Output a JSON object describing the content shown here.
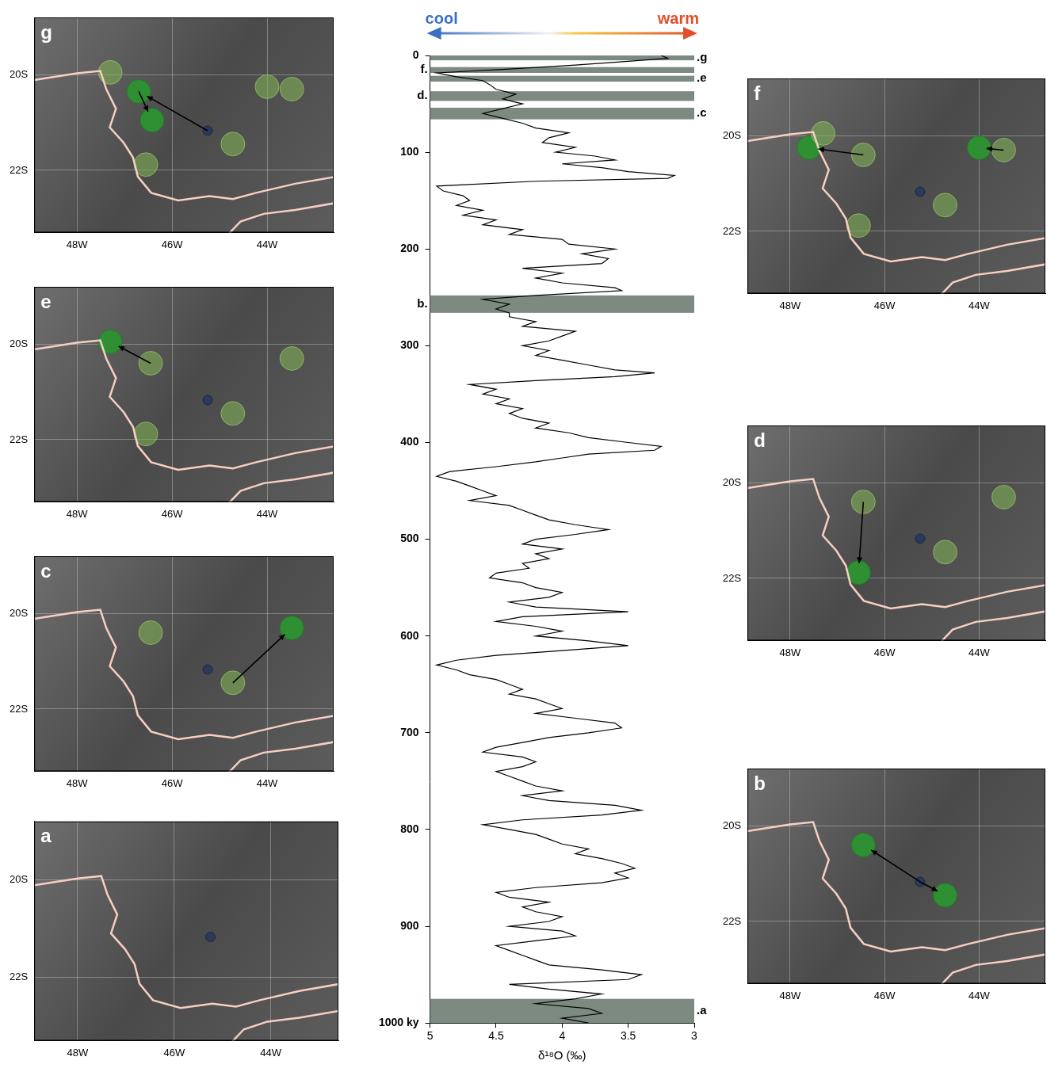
{
  "chart_data": [
    {
      "type": "line",
      "x_label": "δ¹⁸O (‰)",
      "annotations": [
        {
          "text": "cool",
          "color": "#3a6fc4"
        },
        {
          "text": "warm",
          "color": "#e0502a"
        }
      ],
      "color": "#000000",
      "grid": false,
      "xlim": [
        5,
        3
      ],
      "xticks": [
        5,
        4.5,
        4,
        3.5,
        3
      ],
      "ylim": [
        1000,
        0
      ],
      "yticks": [
        0,
        100,
        200,
        300,
        400,
        500,
        600,
        700,
        800,
        900,
        {
          "value": 1000,
          "label": "1000 ky"
        }
      ],
      "bands": [
        {
          "label": ".a",
          "from": 975,
          "to": 1000
        },
        {
          "label": "b.",
          "from": 248,
          "to": 266
        },
        {
          "label": ".c",
          "from": 54,
          "to": 66
        },
        {
          "label": "d.",
          "from": 37,
          "to": 47
        },
        {
          "label": ".e",
          "from": 21,
          "to": 27
        },
        {
          "label": "f.",
          "from": 12,
          "to": 18
        },
        {
          "label": ".g",
          "from": 0,
          "to": 5
        }
      ],
      "y": [
        0,
        3,
        6,
        10,
        14,
        18,
        22,
        26,
        30,
        35,
        40,
        45,
        50,
        55,
        60,
        65,
        70,
        75,
        80,
        85,
        90,
        95,
        100,
        104,
        108,
        112,
        116,
        120,
        124,
        127,
        130,
        135,
        140,
        145,
        150,
        155,
        160,
        165,
        170,
        175,
        180,
        185,
        190,
        195,
        200,
        205,
        210,
        215,
        220,
        225,
        230,
        235,
        240,
        243,
        248,
        252,
        257,
        262,
        266,
        270,
        275,
        280,
        285,
        290,
        295,
        300,
        305,
        310,
        315,
        320,
        325,
        328,
        332,
        336,
        340,
        345,
        350,
        355,
        360,
        365,
        370,
        375,
        380,
        385,
        390,
        395,
        400,
        404,
        408,
        412,
        416,
        420,
        425,
        430,
        435,
        440,
        445,
        450,
        455,
        460,
        465,
        470,
        475,
        480,
        485,
        490,
        495,
        500,
        505,
        510,
        515,
        520,
        525,
        530,
        535,
        540,
        545,
        550,
        555,
        560,
        565,
        570,
        575,
        580,
        585,
        590,
        595,
        600,
        605,
        610,
        615,
        620,
        625,
        630,
        635,
        640,
        645,
        650,
        655,
        660,
        665,
        670,
        675,
        680,
        685,
        690,
        695,
        700,
        705,
        710,
        715,
        720,
        725,
        730,
        735,
        740,
        745,
        750,
        755,
        760,
        765,
        770,
        775,
        780,
        785,
        790,
        795,
        800,
        805,
        810,
        815,
        820,
        825,
        830,
        835,
        840,
        845,
        850,
        855,
        860,
        865,
        870,
        875,
        880,
        885,
        890,
        895,
        900,
        905,
        910,
        915,
        920,
        925,
        930,
        935,
        940,
        945,
        950,
        955,
        960,
        965,
        970,
        975,
        980,
        985,
        990,
        995,
        1000
      ],
      "x": [
        3.25,
        3.2,
        3.5,
        3.9,
        4.4,
        4.95,
        4.8,
        4.6,
        4.55,
        4.5,
        4.35,
        4.45,
        4.3,
        4.45,
        4.6,
        4.45,
        4.3,
        4.2,
        3.95,
        4.1,
        4.15,
        3.9,
        4.05,
        3.75,
        3.6,
        4.0,
        3.7,
        3.5,
        3.15,
        3.2,
        4.2,
        4.95,
        4.9,
        4.75,
        4.7,
        4.8,
        4.6,
        4.75,
        4.5,
        4.6,
        4.3,
        4.4,
        4.0,
        3.95,
        3.6,
        3.85,
        3.65,
        3.7,
        4.3,
        4.0,
        4.2,
        4.0,
        3.6,
        3.55,
        4.2,
        4.6,
        4.4,
        4.5,
        4.4,
        4.4,
        4.2,
        4.3,
        3.9,
        4.0,
        4.1,
        4.3,
        4.1,
        4.2,
        4.0,
        3.8,
        3.6,
        3.3,
        3.6,
        4.2,
        4.7,
        4.5,
        4.6,
        4.4,
        4.5,
        4.3,
        4.4,
        4.3,
        4.1,
        4.2,
        3.95,
        3.8,
        3.5,
        3.25,
        3.3,
        3.8,
        4.0,
        4.2,
        4.5,
        4.85,
        4.95,
        4.8,
        4.7,
        4.6,
        4.5,
        4.7,
        4.4,
        4.3,
        4.2,
        4.1,
        3.9,
        3.65,
        3.9,
        4.2,
        4.3,
        4.0,
        4.2,
        4.1,
        4.3,
        4.25,
        4.5,
        4.55,
        4.3,
        4.2,
        4.0,
        4.1,
        4.4,
        4.2,
        3.5,
        4.3,
        4.5,
        4.2,
        4.0,
        4.2,
        3.8,
        3.5,
        4.0,
        4.5,
        4.8,
        4.95,
        4.8,
        4.7,
        4.5,
        4.4,
        4.3,
        4.4,
        4.2,
        4.1,
        4.0,
        4.2,
        3.9,
        3.6,
        3.55,
        3.8,
        4.1,
        4.3,
        4.5,
        4.6,
        4.3,
        4.2,
        4.3,
        4.5,
        4.4,
        4.3,
        4.2,
        4.0,
        4.3,
        4.1,
        3.6,
        3.4,
        3.7,
        4.3,
        4.6,
        4.4,
        4.2,
        4.1,
        4.0,
        3.8,
        3.9,
        3.7,
        3.55,
        3.45,
        3.6,
        3.5,
        3.7,
        4.2,
        4.5,
        4.4,
        4.1,
        4.3,
        4.2,
        4.0,
        4.1,
        4.4,
        4.0,
        3.9,
        4.2,
        4.5,
        4.4,
        4.3,
        4.2,
        4.1,
        3.7,
        3.4,
        3.5,
        4.4,
        4.1,
        3.7,
        3.9,
        4.2,
        3.8,
        3.7,
        4.0,
        3.8
      ]
    },
    {
      "type": "map",
      "title": "a",
      "grid": true,
      "xlim": [
        -48.9,
        -42.6
      ],
      "ylim": [
        -23.3,
        -18.8
      ],
      "xticks": [
        {
          "value": -48,
          "label": "48W"
        },
        {
          "value": -46,
          "label": "46W"
        },
        {
          "value": -44,
          "label": "44W"
        }
      ],
      "yticks": [
        {
          "value": -22,
          "label": "22S"
        },
        {
          "value": -20,
          "label": "20S"
        }
      ],
      "origin": [
        -45.25,
        -21.17
      ],
      "existing": [],
      "new": [],
      "arrows": []
    },
    {
      "type": "map",
      "title": "b",
      "grid": true,
      "xlim": [
        -48.9,
        -42.6
      ],
      "ylim": [
        -23.3,
        -18.8
      ],
      "xticks": [
        {
          "value": -48,
          "label": "48W"
        },
        {
          "value": -46,
          "label": "46W"
        },
        {
          "value": -44,
          "label": "44W"
        }
      ],
      "yticks": [
        {
          "value": -22,
          "label": "22S"
        },
        {
          "value": -20,
          "label": "20S"
        }
      ],
      "origin": [
        -45.25,
        -21.17
      ],
      "existing": [],
      "new": [
        [
          -46.45,
          -20.4
        ],
        [
          -44.72,
          -21.45
        ]
      ],
      "arrows": [
        [
          -45.25,
          -21.17,
          -46.45,
          -20.4
        ],
        [
          -45.25,
          -21.17,
          -44.72,
          -21.45
        ]
      ]
    },
    {
      "type": "map",
      "title": "c",
      "grid": true,
      "xlim": [
        -48.9,
        -42.6
      ],
      "ylim": [
        -23.3,
        -18.8
      ],
      "xticks": [
        {
          "value": -48,
          "label": "48W"
        },
        {
          "value": -46,
          "label": "46W"
        },
        {
          "value": -44,
          "label": "44W"
        }
      ],
      "yticks": [
        {
          "value": -22,
          "label": "22S"
        },
        {
          "value": -20,
          "label": "20S"
        }
      ],
      "origin": [
        -45.25,
        -21.17
      ],
      "existing": [
        [
          -46.45,
          -20.4
        ],
        [
          -44.72,
          -21.45
        ]
      ],
      "new": [
        [
          -43.48,
          -20.3
        ]
      ],
      "arrows": [
        [
          -44.72,
          -21.45,
          -43.48,
          -20.3
        ]
      ]
    },
    {
      "type": "map",
      "title": "d",
      "grid": true,
      "xlim": [
        -48.9,
        -42.6
      ],
      "ylim": [
        -23.3,
        -18.8
      ],
      "xticks": [
        {
          "value": -48,
          "label": "48W"
        },
        {
          "value": -46,
          "label": "46W"
        },
        {
          "value": -44,
          "label": "44W"
        }
      ],
      "yticks": [
        {
          "value": -22,
          "label": "22S"
        },
        {
          "value": -20,
          "label": "20S"
        }
      ],
      "origin": [
        -45.25,
        -21.17
      ],
      "existing": [
        [
          -46.45,
          -20.4
        ],
        [
          -44.72,
          -21.45
        ],
        [
          -43.48,
          -20.3
        ]
      ],
      "new": [
        [
          -46.55,
          -21.88
        ]
      ],
      "arrows": [
        [
          -46.45,
          -20.4,
          -46.55,
          -21.88
        ]
      ]
    },
    {
      "type": "map",
      "title": "e",
      "grid": true,
      "xlim": [
        -48.9,
        -42.6
      ],
      "ylim": [
        -23.3,
        -18.8
      ],
      "xticks": [
        {
          "value": -48,
          "label": "48W"
        },
        {
          "value": -46,
          "label": "46W"
        },
        {
          "value": -44,
          "label": "44W"
        }
      ],
      "yticks": [
        {
          "value": -22,
          "label": "22S"
        },
        {
          "value": -20,
          "label": "20S"
        }
      ],
      "origin": [
        -45.25,
        -21.17
      ],
      "existing": [
        [
          -46.45,
          -20.4
        ],
        [
          -44.72,
          -21.45
        ],
        [
          -43.48,
          -20.3
        ],
        [
          -46.55,
          -21.88
        ]
      ],
      "new": [
        [
          -47.3,
          -19.95
        ]
      ],
      "arrows": [
        [
          -46.45,
          -20.4,
          -47.3,
          -19.95
        ]
      ]
    },
    {
      "type": "map",
      "title": "f",
      "grid": true,
      "xlim": [
        -48.9,
        -42.6
      ],
      "ylim": [
        -23.3,
        -18.8
      ],
      "xticks": [
        {
          "value": -48,
          "label": "48W"
        },
        {
          "value": -46,
          "label": "46W"
        },
        {
          "value": -44,
          "label": "44W"
        }
      ],
      "yticks": [
        {
          "value": -22,
          "label": "22S"
        },
        {
          "value": -20,
          "label": "20S"
        }
      ],
      "origin": [
        -45.25,
        -21.17
      ],
      "existing": [
        [
          -46.45,
          -20.4
        ],
        [
          -44.72,
          -21.45
        ],
        [
          -43.48,
          -20.3
        ],
        [
          -46.55,
          -21.88
        ],
        [
          -47.3,
          -19.95
        ]
      ],
      "new": [
        [
          -47.6,
          -20.25
        ],
        [
          -44.0,
          -20.25
        ]
      ],
      "arrows": [
        [
          -46.45,
          -20.4,
          -47.6,
          -20.25
        ],
        [
          -43.48,
          -20.3,
          -44.0,
          -20.25
        ]
      ]
    },
    {
      "type": "map",
      "title": "g",
      "grid": true,
      "xlim": [
        -48.9,
        -42.6
      ],
      "ylim": [
        -23.3,
        -18.8
      ],
      "xticks": [
        {
          "value": -48,
          "label": "48W"
        },
        {
          "value": -46,
          "label": "46W"
        },
        {
          "value": -44,
          "label": "44W"
        }
      ],
      "yticks": [
        {
          "value": -22,
          "label": "22S"
        },
        {
          "value": -20,
          "label": "20S"
        }
      ],
      "origin": [
        -45.25,
        -21.17
      ],
      "existing": [
        [
          -44.72,
          -21.45
        ],
        [
          -43.48,
          -20.3
        ],
        [
          -46.55,
          -21.88
        ],
        [
          -47.3,
          -19.95
        ],
        [
          -44.0,
          -20.25
        ]
      ],
      "new": [
        [
          -46.7,
          -20.35
        ],
        [
          -46.42,
          -20.95
        ]
      ],
      "arrows": [
        [
          -45.25,
          -21.17,
          -46.7,
          -20.35
        ],
        [
          -46.7,
          -20.35,
          -46.42,
          -20.95
        ]
      ]
    }
  ],
  "map_base": {
    "border": [
      [
        -48.9,
        -20.11
      ],
      [
        -48.0,
        -19.97
      ],
      [
        -47.51,
        -19.92
      ],
      [
        -47.38,
        -20.31
      ],
      [
        -47.18,
        -20.71
      ],
      [
        -47.31,
        -21.1
      ],
      [
        -47.02,
        -21.42
      ],
      [
        -46.82,
        -21.73
      ],
      [
        -46.72,
        -22.13
      ],
      [
        -46.44,
        -22.47
      ],
      [
        -45.87,
        -22.63
      ],
      [
        -45.21,
        -22.54
      ],
      [
        -44.72,
        -22.6
      ],
      [
        -44.23,
        -22.47
      ],
      [
        -43.41,
        -22.28
      ],
      [
        -42.54,
        -22.13
      ]
    ],
    "coast": [
      [
        -44.8,
        -23.32
      ],
      [
        -44.56,
        -23.07
      ],
      [
        -44.07,
        -22.91
      ],
      [
        -43.41,
        -22.83
      ],
      [
        -42.54,
        -22.68
      ]
    ]
  }
}
